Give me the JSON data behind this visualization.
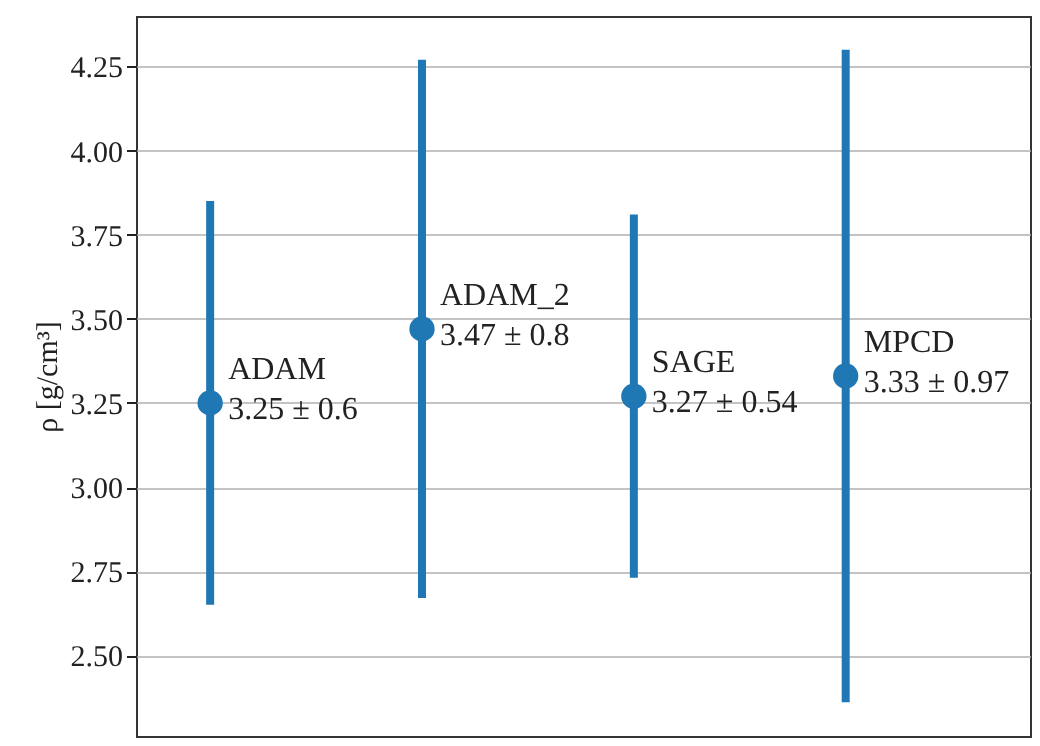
{
  "chart_data": {
    "type": "scatter",
    "ylabel": "ρ [g/cm³]",
    "categories": [
      null,
      null,
      null,
      null
    ],
    "values": [
      3.25,
      3.47,
      3.27,
      3.33
    ],
    "errors": [
      0.6,
      0.8,
      0.54,
      0.97
    ],
    "value_labels": [
      "3.25 ± 0.6",
      "3.47 ± 0.8",
      "3.27 ± 0.54",
      "3.33 ± 0.97"
    ],
    "annotations": [
      "ADAM",
      "ADAM_2",
      "SAGE",
      "MPCD"
    ],
    "color": "#1f77b4",
    "marker": "circle",
    "grid": "y",
    "legend": false,
    "tick_labels": "y",
    "ylim": [
      2.26,
      4.4
    ],
    "yticks": [
      {
        "value": 2.5,
        "label": "2.50"
      },
      {
        "value": 2.75,
        "label": "2.75"
      },
      {
        "value": 3.0,
        "label": "3.00"
      },
      {
        "value": 3.25,
        "label": "3.25"
      },
      {
        "value": 3.5,
        "label": "3.50"
      },
      {
        "value": 3.75,
        "label": "3.75"
      },
      {
        "value": 4.0,
        "label": "4.00"
      },
      {
        "value": 4.25,
        "label": "4.25"
      }
    ]
  }
}
